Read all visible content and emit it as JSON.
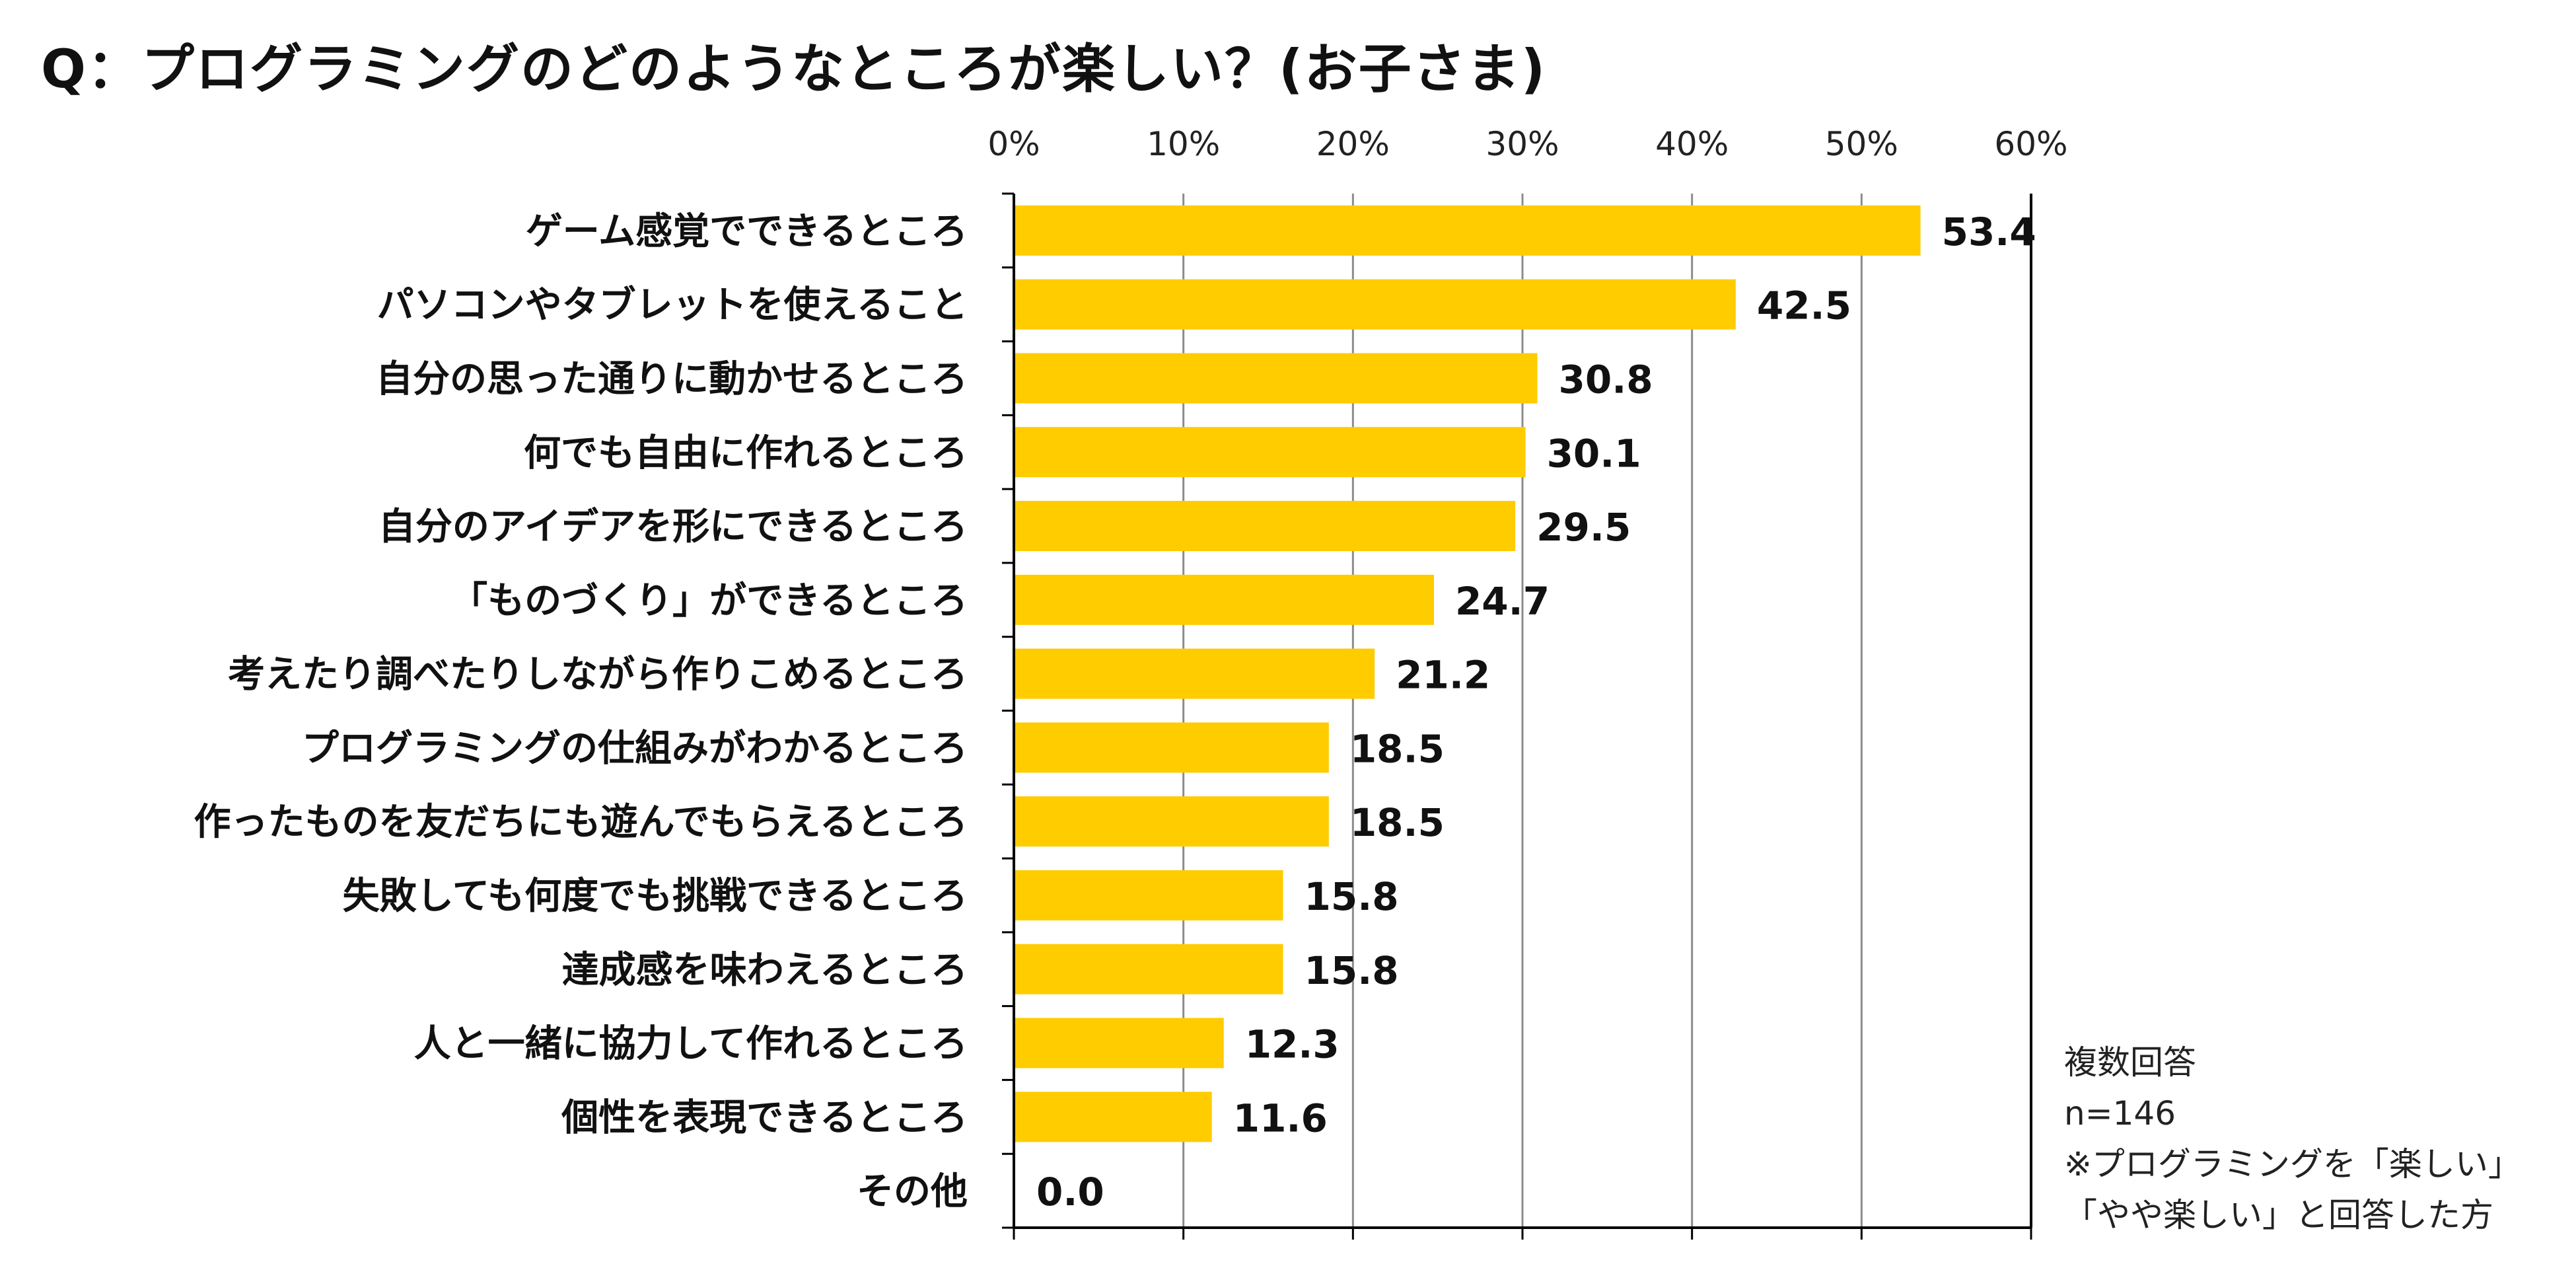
{
  "title": "Q：プログラミングのどのようなところが楽しい？(お子さま)",
  "notes": {
    "line1": "複数回答",
    "line2": "n=146",
    "line3": "※プログラミングを「楽しい」",
    "line4": "「やや楽しい」と回答した方"
  },
  "colors": {
    "bar": "#FFCC00",
    "gridline": "#8C8C8C",
    "axis": "#000000"
  },
  "chart_data": {
    "type": "bar",
    "orientation": "horizontal",
    "title": "Q：プログラミングのどのようなところが楽しい？(お子さま)",
    "xlabel": "",
    "ylabel": "",
    "xlim": [
      0,
      60
    ],
    "x_ticks": [
      0,
      10,
      20,
      30,
      40,
      50,
      60
    ],
    "x_tick_labels": [
      "0%",
      "10%",
      "20%",
      "30%",
      "40%",
      "50%",
      "60%"
    ],
    "tick_position": "top",
    "grid": true,
    "legend": "none",
    "categories": [
      "ゲーム感覚でできるところ",
      "パソコンやタブレットを使えること",
      "自分の思った通りに動かせるところ",
      "何でも自由に作れるところ",
      "自分のアイデアを形にできるところ",
      "「ものづくり」ができるところ",
      "考えたり調べたりしながら作りこめるところ",
      "プログラミングの仕組みがわかるところ",
      "作ったものを友だちにも遊んでもらえるところ",
      "失敗しても何度でも挑戦できるところ",
      "達成感を味わえるところ",
      "人と一緒に協力して作れるところ",
      "個性を表現できるところ",
      "その他"
    ],
    "values": [
      53.4,
      42.5,
      30.8,
      30.1,
      29.5,
      24.7,
      21.2,
      18.5,
      18.5,
      15.8,
      15.8,
      12.3,
      11.6,
      0.0
    ],
    "value_labels": [
      "53.4",
      "42.5",
      "30.8",
      "30.1",
      "29.5",
      "24.7",
      "21.2",
      "18.5",
      "18.5",
      "15.8",
      "15.8",
      "12.3",
      "11.6",
      "0.0"
    ]
  }
}
